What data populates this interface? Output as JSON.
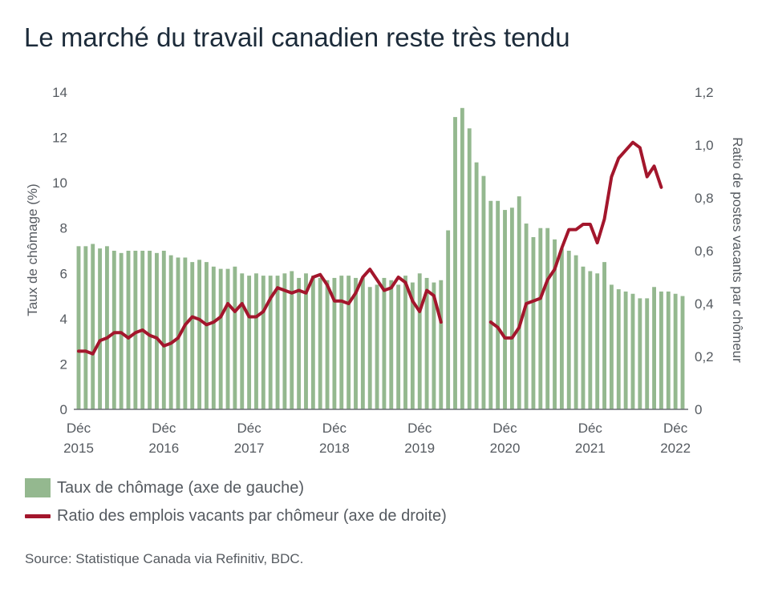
{
  "title": "Le marché du travail canadien reste très tendu",
  "legend": {
    "bars": "Taux de chômage (axe de gauche)",
    "line": "Ratio des emplois vacants par chômeur (axe de droite)"
  },
  "source": "Source: Statistique Canada via Refinitiv, BDC.",
  "colors": {
    "bars": "#94b88f",
    "line": "#a3162c",
    "axis": "#555a60",
    "title": "#1c2b3a"
  },
  "chart_data": {
    "type": "bar+line",
    "x_ticks": [
      {
        "line1": "Déc",
        "line2": "2015",
        "index": 0
      },
      {
        "line1": "Déc",
        "line2": "2016",
        "index": 12
      },
      {
        "line1": "Déc",
        "line2": "2017",
        "index": 24
      },
      {
        "line1": "Déc",
        "line2": "2018",
        "index": 36
      },
      {
        "line1": "Déc",
        "line2": "2019",
        "index": 48
      },
      {
        "line1": "Déc",
        "line2": "2020",
        "index": 60
      },
      {
        "line1": "Déc",
        "line2": "2021",
        "index": 72
      },
      {
        "line1": "Déc",
        "line2": "2022",
        "index": 84
      }
    ],
    "y_left": {
      "label": "Taux de chômage (%)",
      "min": 0,
      "max": 14,
      "ticks": [
        "0",
        "2",
        "4",
        "6",
        "8",
        "10",
        "12",
        "14"
      ]
    },
    "y_right": {
      "label": "Ratio de postes vacants par chômeur",
      "min": 0,
      "max": 1.2,
      "ticks": [
        "0",
        "0,2",
        "0,4",
        "0,6",
        "0,8",
        "1,0",
        "1,2"
      ]
    },
    "series": [
      {
        "name": "Taux de chômage (axe de gauche)",
        "type": "bar",
        "axis": "left",
        "values": [
          7.2,
          7.2,
          7.3,
          7.1,
          7.2,
          7.0,
          6.9,
          7.0,
          7.0,
          7.0,
          7.0,
          6.9,
          7.0,
          6.8,
          6.7,
          6.7,
          6.5,
          6.6,
          6.5,
          6.3,
          6.2,
          6.2,
          6.3,
          6.0,
          5.9,
          6.0,
          5.9,
          5.9,
          5.9,
          6.0,
          6.1,
          5.8,
          6.0,
          5.9,
          5.8,
          5.7,
          5.8,
          5.9,
          5.9,
          5.8,
          5.8,
          5.4,
          5.5,
          5.8,
          5.7,
          5.5,
          5.9,
          5.6,
          6.0,
          5.8,
          5.6,
          5.7,
          7.9,
          12.9,
          13.3,
          12.4,
          10.9,
          10.3,
          9.2,
          9.2,
          8.8,
          8.9,
          9.4,
          8.2,
          7.6,
          8.0,
          8.0,
          7.5,
          7.1,
          7.0,
          6.8,
          6.3,
          6.1,
          6.0,
          6.5,
          5.5,
          5.3,
          5.2,
          5.1,
          4.9,
          4.9,
          5.4,
          5.2,
          5.2,
          5.1,
          5.0
        ]
      },
      {
        "name": "Ratio des emplois vacants par chômeur (axe de droite)",
        "type": "line",
        "axis": "right",
        "values": [
          0.22,
          0.22,
          0.21,
          0.26,
          0.27,
          0.29,
          0.29,
          0.27,
          0.29,
          0.3,
          0.28,
          0.27,
          0.24,
          0.25,
          0.27,
          0.32,
          0.35,
          0.34,
          0.32,
          0.33,
          0.35,
          0.4,
          0.37,
          0.4,
          0.35,
          0.35,
          0.37,
          0.42,
          0.46,
          0.45,
          0.44,
          0.45,
          0.44,
          0.5,
          0.51,
          0.47,
          0.41,
          0.41,
          0.4,
          0.44,
          0.5,
          0.53,
          0.49,
          0.45,
          0.46,
          0.5,
          0.48,
          0.41,
          0.37,
          0.45,
          0.43,
          0.33,
          null,
          null,
          null,
          null,
          null,
          null,
          0.33,
          0.31,
          0.27,
          0.27,
          0.31,
          0.4,
          0.41,
          0.42,
          0.49,
          0.53,
          0.61,
          0.68,
          0.68,
          0.7,
          0.7,
          0.63,
          0.72,
          0.88,
          0.95,
          0.98,
          1.01,
          0.99,
          0.88,
          0.92,
          0.84
        ]
      }
    ]
  }
}
